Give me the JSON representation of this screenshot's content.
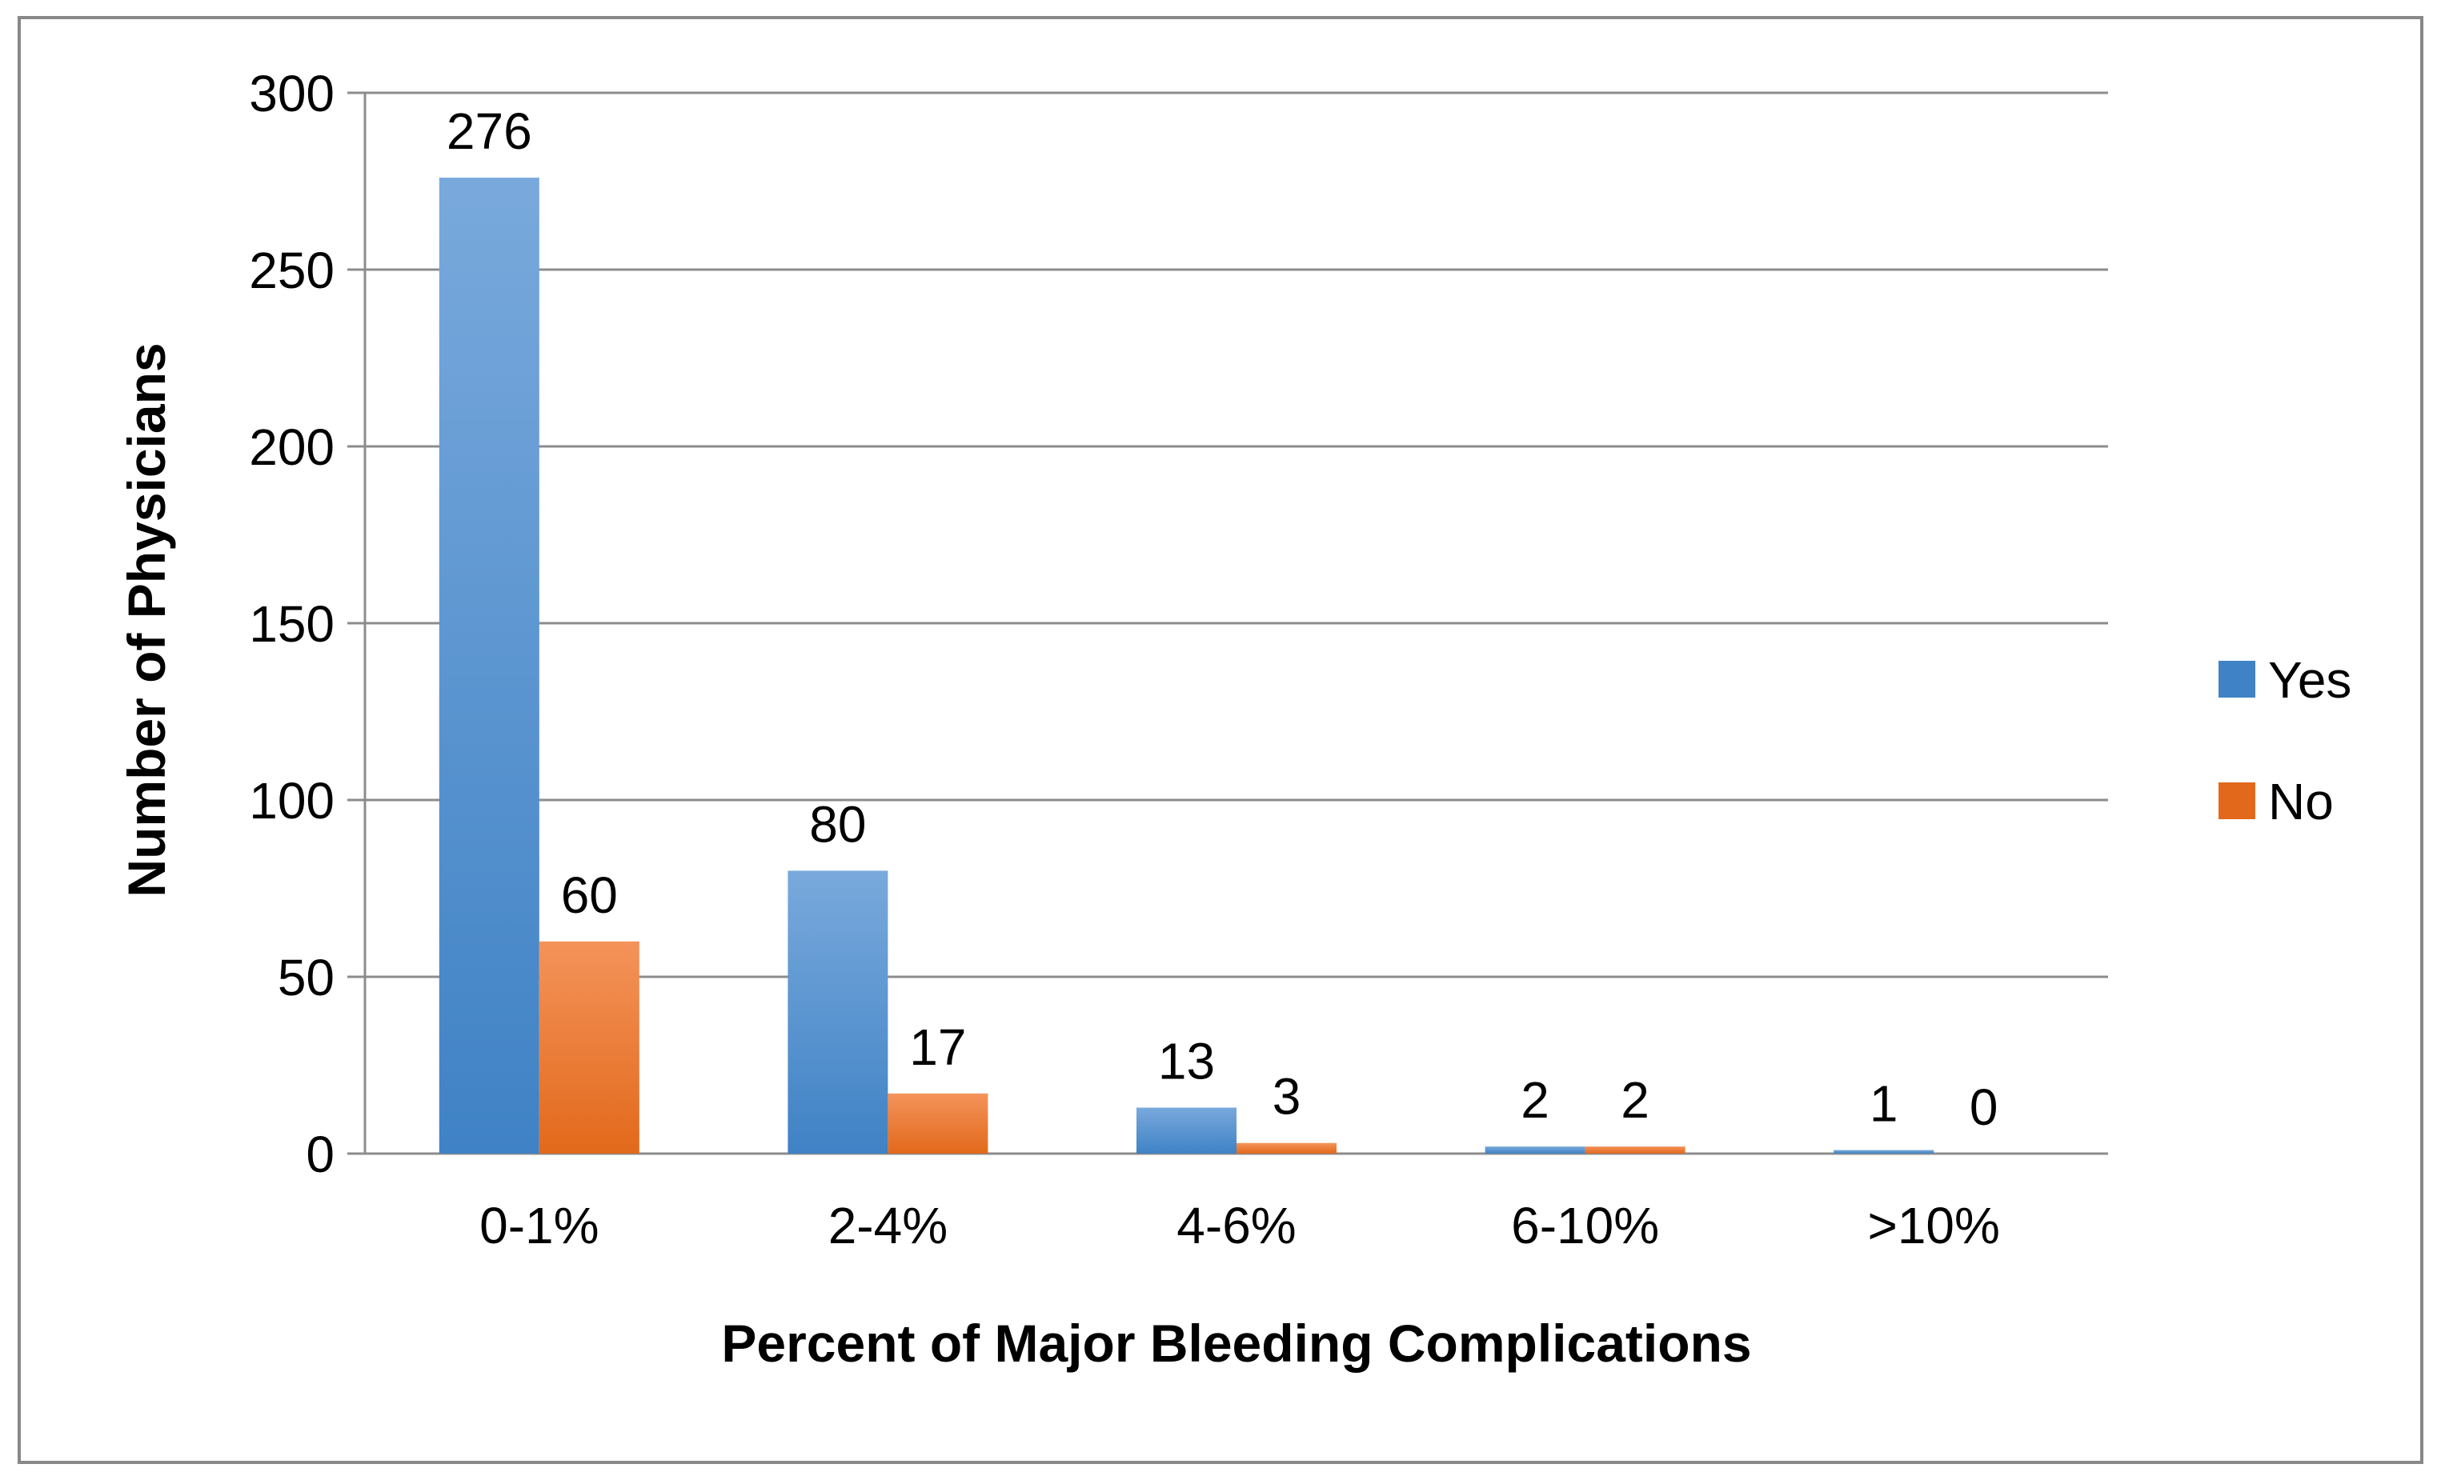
{
  "colors": {
    "yes_top": "#79A9DC",
    "yes_bottom": "#3F82C5",
    "no_top": "#F4935A",
    "no_bottom": "#E2691B",
    "grid": "#8C8C8C",
    "border": "#888888"
  },
  "chart_data": {
    "type": "bar",
    "title": "",
    "xlabel": "Percent of Major Bleeding Complications",
    "ylabel": "Number of Physicians",
    "categories": [
      "0-1%",
      "2-4%",
      "4-6%",
      "6-10%",
      ">10%"
    ],
    "series": [
      {
        "name": "Yes",
        "values": [
          276,
          80,
          13,
          2,
          1
        ]
      },
      {
        "name": "No",
        "values": [
          60,
          17,
          3,
          2,
          0
        ]
      }
    ],
    "ylim": [
      0,
      300
    ],
    "yticks": [
      0,
      50,
      100,
      150,
      200,
      250,
      300
    ],
    "grid": true,
    "legend_position": "right"
  }
}
